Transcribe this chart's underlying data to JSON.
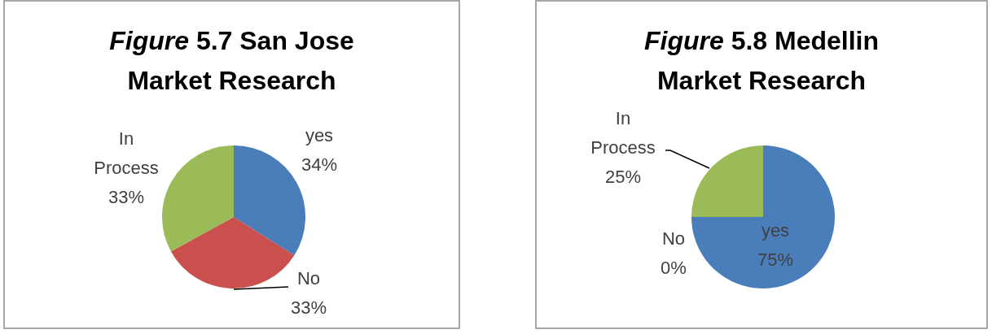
{
  "chart_data": [
    {
      "type": "pie",
      "title": "Figure 5.7 San Jose Market Research",
      "categories": [
        "yes",
        "No",
        "In Process"
      ],
      "values": [
        34,
        33,
        33
      ],
      "value_labels": [
        "34%",
        "33%",
        "33%"
      ],
      "colors": [
        "#4a7ebb",
        "#c9504d",
        "#9bbb59"
      ]
    },
    {
      "type": "pie",
      "title": "Figure 5.8 Medellin Market Research",
      "categories": [
        "yes",
        "No",
        "In Process"
      ],
      "values": [
        75,
        0,
        25
      ],
      "value_labels": [
        "75%",
        "0%",
        "25%"
      ],
      "colors": [
        "#4a7ebb",
        "#c9504d",
        "#9bbb59"
      ]
    }
  ]
}
